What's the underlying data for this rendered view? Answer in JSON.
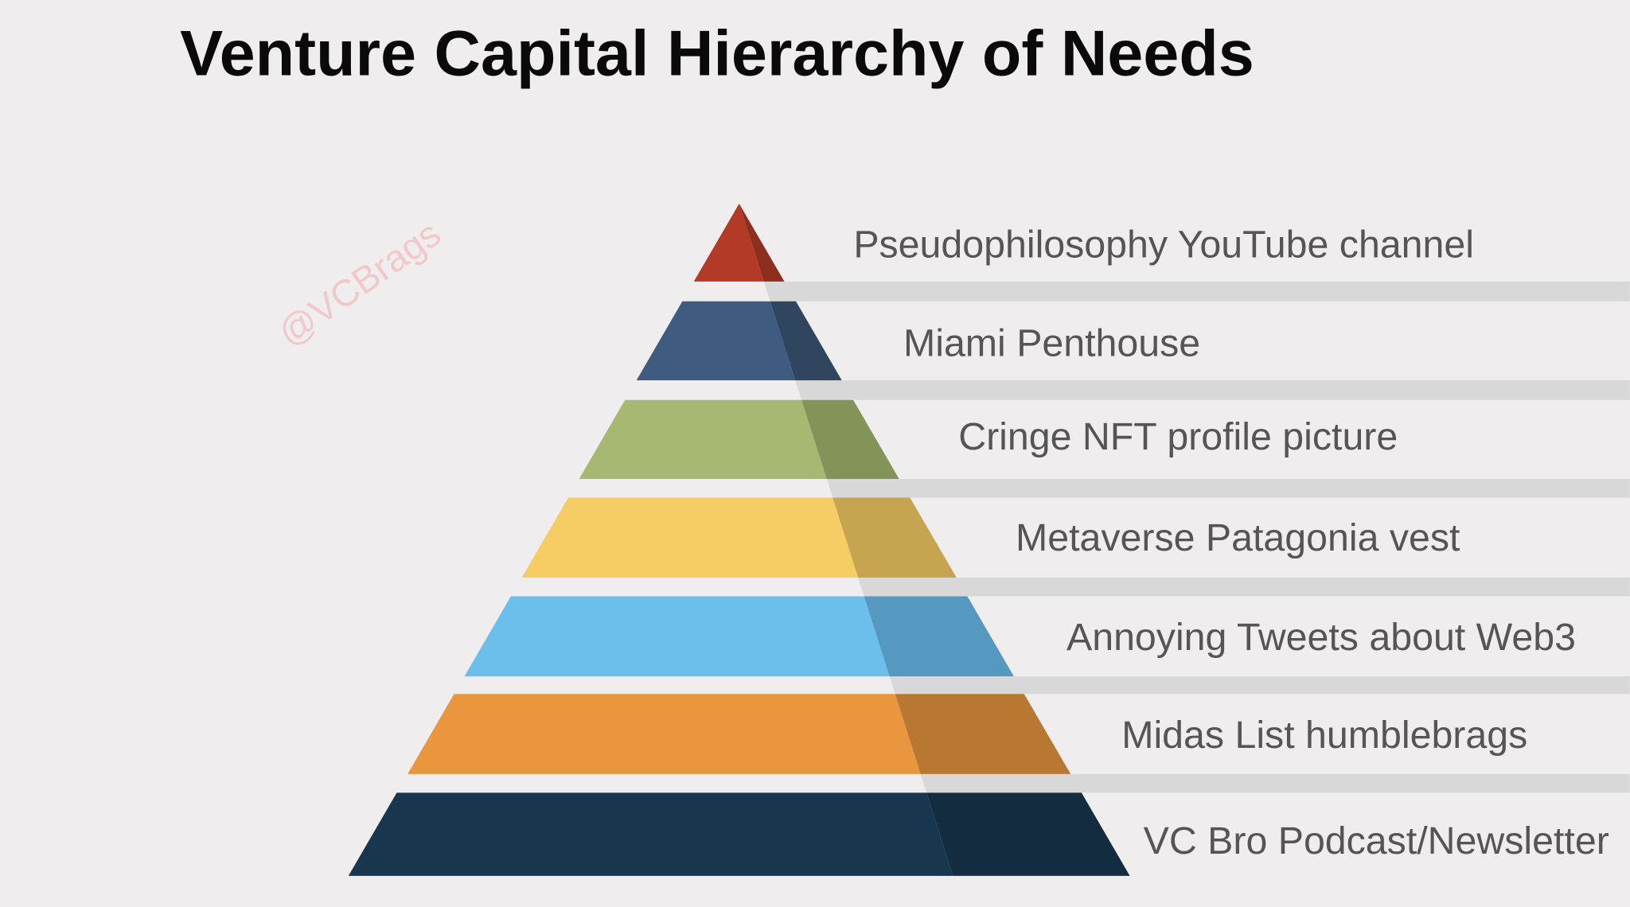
{
  "title": "Venture Capital Hierarchy of Needs",
  "watermark": "@VCBrags",
  "levels": [
    {
      "label": "Pseudophilosophy YouTube channel"
    },
    {
      "label": "Miami Penthouse"
    },
    {
      "label": "Cringe NFT profile picture"
    },
    {
      "label": "Metaverse Patagonia vest"
    },
    {
      "label": "Annoying Tweets about Web3"
    },
    {
      "label": "Midas List humblebrags"
    },
    {
      "label": "VC Bro Podcast/Newsletter"
    }
  ]
}
